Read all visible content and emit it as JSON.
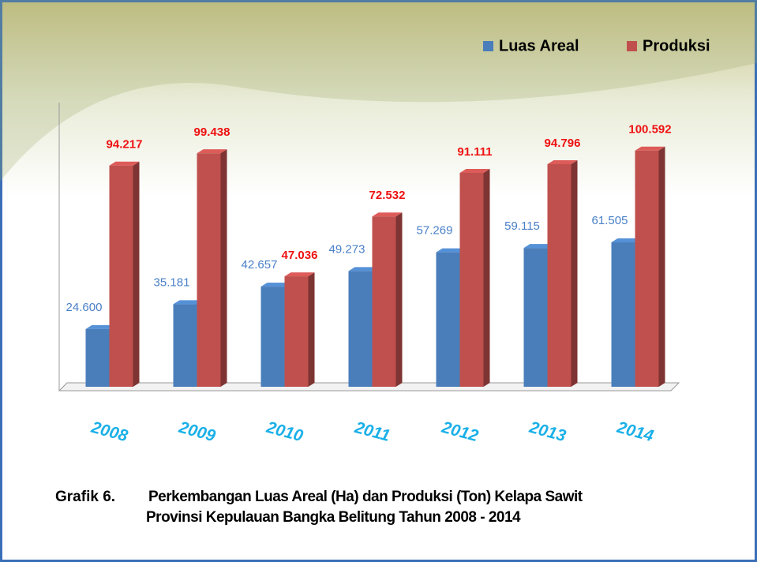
{
  "chart_data": {
    "type": "bar",
    "categories": [
      "2008",
      "2009",
      "2010",
      "2011",
      "2012",
      "2013",
      "2014"
    ],
    "series": [
      {
        "name": "Luas Areal",
        "color": "#4a7ebb",
        "values": [
          24600,
          35181,
          42657,
          49273,
          57269,
          59115,
          61505
        ],
        "value_labels": [
          "24.600",
          "35.181",
          "42.657",
          "49.273",
          "57.269",
          "59.115",
          "61.505"
        ]
      },
      {
        "name": "Produksi",
        "color": "#c0504d",
        "values": [
          94217,
          99438,
          47036,
          72532,
          91111,
          94796,
          100592
        ],
        "value_labels": [
          "94.217",
          "99.438",
          "47.036",
          "72.532",
          "91.111",
          "94.796",
          "100.592"
        ]
      }
    ],
    "ylim": [
      0,
      120000
    ],
    "legend": "top-right",
    "caption": "Grafik 6.",
    "title": "Perkembangan Luas Areal (Ha) dan Produksi (Ton) Kelapa Sawit",
    "subtitle": "Provinsi Kepulauan Bangka Belitung Tahun 2008 - 2014"
  }
}
